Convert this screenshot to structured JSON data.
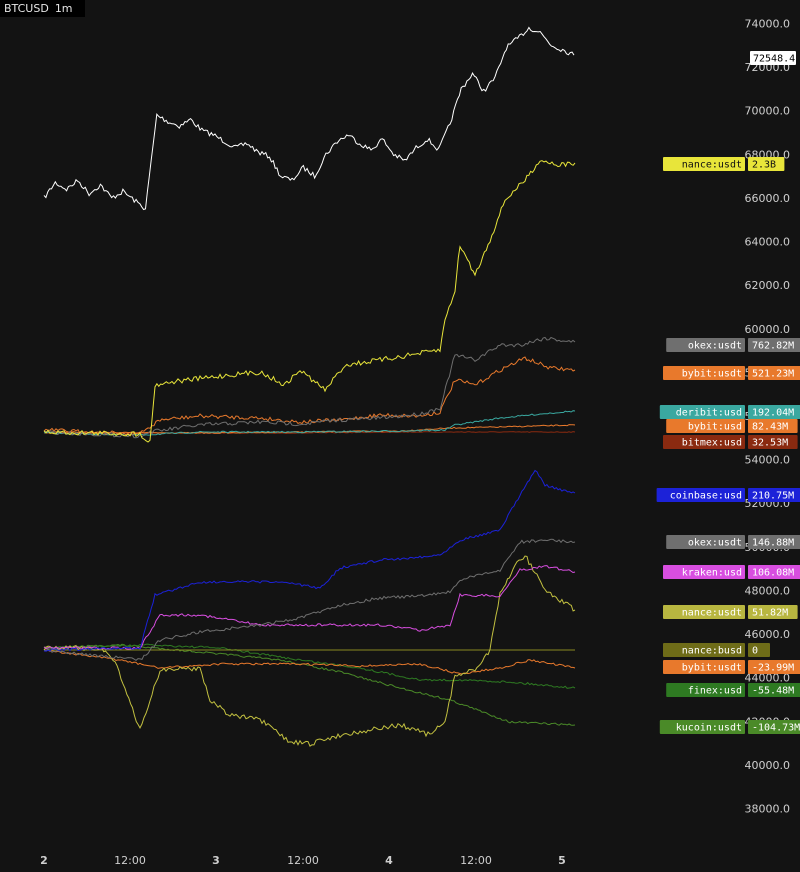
{
  "header": {
    "symbol": "BTCUSD",
    "interval": "1m"
  },
  "colors": {
    "background": "#131313",
    "price": "#ffffff",
    "binance_usdt": "#e8e53a",
    "okex_usdt": "#6f6f6f",
    "bybit_usdt": "#e8792c",
    "deribit_usd": "#3aa8a0",
    "bybit_usd": "#e8792c",
    "bitmex_usd": "#8a2a10",
    "coinbase_usd": "#1c22d8",
    "kraken_usd": "#d84ee0",
    "binance_busd": "#8a8a20",
    "finex_usd": "#2e7a22",
    "kucoin_usdt": "#4a8a28"
  },
  "chart_data": {
    "type": "line",
    "title": "BTCUSD 1m",
    "x": [
      "2",
      "12:00",
      "3",
      "12:00",
      "4",
      "12:00",
      "5"
    ],
    "y_axis": {
      "ticks": [
        "74000.0",
        "72000.0",
        "70000.0",
        "68000.0",
        "66000.0",
        "64000.0",
        "62000.0",
        "60000.0",
        "58000.0",
        "56000.0",
        "54000.0",
        "52000.0",
        "50000.0",
        "48000.0",
        "46000.0",
        "44000.0",
        "42000.0",
        "40000.0",
        "38000.0"
      ],
      "range": [
        37000,
        75000
      ]
    },
    "price_series": {
      "name": "BTCUSD",
      "last_value": "72548.4",
      "values": [
        66000,
        66700,
        66400,
        66800,
        66200,
        66600,
        66000,
        66300,
        65900,
        65500,
        69800,
        69500,
        69300,
        69600,
        69100,
        68900,
        68600,
        68300,
        68500,
        68100,
        67900,
        67000,
        66800,
        67400,
        67000,
        68000,
        68600,
        68900,
        68500,
        68200,
        68700,
        68000,
        67700,
        68300,
        68700,
        68200,
        69400,
        71000,
        71700,
        70900,
        71500,
        72900,
        73300,
        73800,
        73600,
        73000,
        72800,
        72550
      ]
    },
    "cvd_panel_1": {
      "series": [
        {
          "name": "binance:usdt",
          "label": "nance:usdt",
          "value": "2.3B",
          "color_key": "binance_usdt"
        },
        {
          "name": "okex:usdt",
          "label": "okex:usdt",
          "value": "762.82M",
          "color_key": "okex_usdt"
        },
        {
          "name": "bybit:usdt",
          "label": "bybit:usdt",
          "value": "521.23M",
          "color_key": "bybit_usdt"
        },
        {
          "name": "deribit:usd",
          "label": "deribit:usd",
          "value": "192.04M",
          "color_key": "deribit_usd"
        },
        {
          "name": "bybit:usd",
          "label": "bybit:usd",
          "value": "82.43M",
          "color_key": "bybit_usd"
        },
        {
          "name": "bitmex:usd",
          "label": "bitmex:usd",
          "value": "32.53M",
          "color_key": "bitmex_usd"
        }
      ]
    },
    "cvd_panel_2": {
      "series": [
        {
          "name": "coinbase:usd",
          "label": "coinbase:usd",
          "value": "210.75M",
          "color_key": "coinbase_usd"
        },
        {
          "name": "okex:usdt",
          "label": "okex:usdt",
          "value": "146.88M",
          "color_key": "okex_usdt"
        },
        {
          "name": "kraken:usd",
          "label": "kraken:usd",
          "value": "106.08M",
          "color_key": "kraken_usd"
        },
        {
          "name": "binance:usdt",
          "label": "nance:usdt",
          "value": "51.82M",
          "color_key": "binance_usdt"
        },
        {
          "name": "binance:busd",
          "label": "nance:busd",
          "value": "0",
          "color_key": "binance_busd"
        },
        {
          "name": "bybit:usdt",
          "label": "bybit:usdt",
          "value": "-23.99M",
          "color_key": "bybit_usdt"
        },
        {
          "name": "finex:usd",
          "label": "finex:usd",
          "value": "-55.48M",
          "color_key": "finex_usd"
        },
        {
          "name": "kucoin:usdt",
          "label": "kucoin:usdt",
          "value": "-104.73M",
          "color_key": "kucoin_usdt"
        }
      ]
    },
    "grid": false,
    "legend": "right-axis tags"
  }
}
